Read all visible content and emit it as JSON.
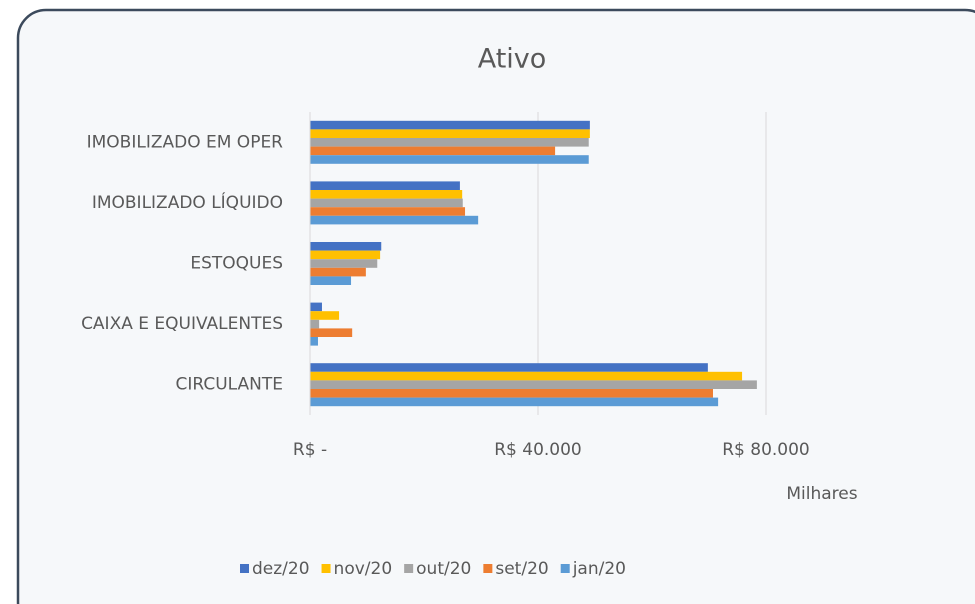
{
  "chart_data": {
    "type": "hbar",
    "title": "Ativo",
    "x_axis_label": "Milhares",
    "categories": [
      "IMOBILIZADO EM OPER",
      "IMOBILIZADO LÍQUIDO",
      "ESTOQUES",
      "CAIXA E EQUIVALENTES",
      "CIRCULANTE"
    ],
    "series": [
      {
        "name": "dez/20",
        "color": "#4472c4",
        "values": [
          49100,
          26300,
          12500,
          2100,
          69800
        ]
      },
      {
        "name": "nov/20",
        "color": "#ffc000",
        "values": [
          49100,
          26700,
          12300,
          5100,
          75800
        ]
      },
      {
        "name": "out/20",
        "color": "#a5a5a5",
        "values": [
          48900,
          26800,
          11800,
          1600,
          78400
        ]
      },
      {
        "name": "set/20",
        "color": "#ed7d31",
        "values": [
          43000,
          27200,
          9800,
          7400,
          70700
        ]
      },
      {
        "name": "jan/20",
        "color": "#5b9bd5",
        "values": [
          48900,
          29500,
          7200,
          1400,
          71600
        ]
      }
    ],
    "xlim": [
      0,
      80000
    ],
    "xticks": [
      {
        "value": 0,
        "label": "R$ -"
      },
      {
        "value": 40000,
        "label": "R$ 40.000"
      },
      {
        "value": 80000,
        "label": "R$ 80.000"
      }
    ],
    "grid": true,
    "legend": "bottom"
  }
}
